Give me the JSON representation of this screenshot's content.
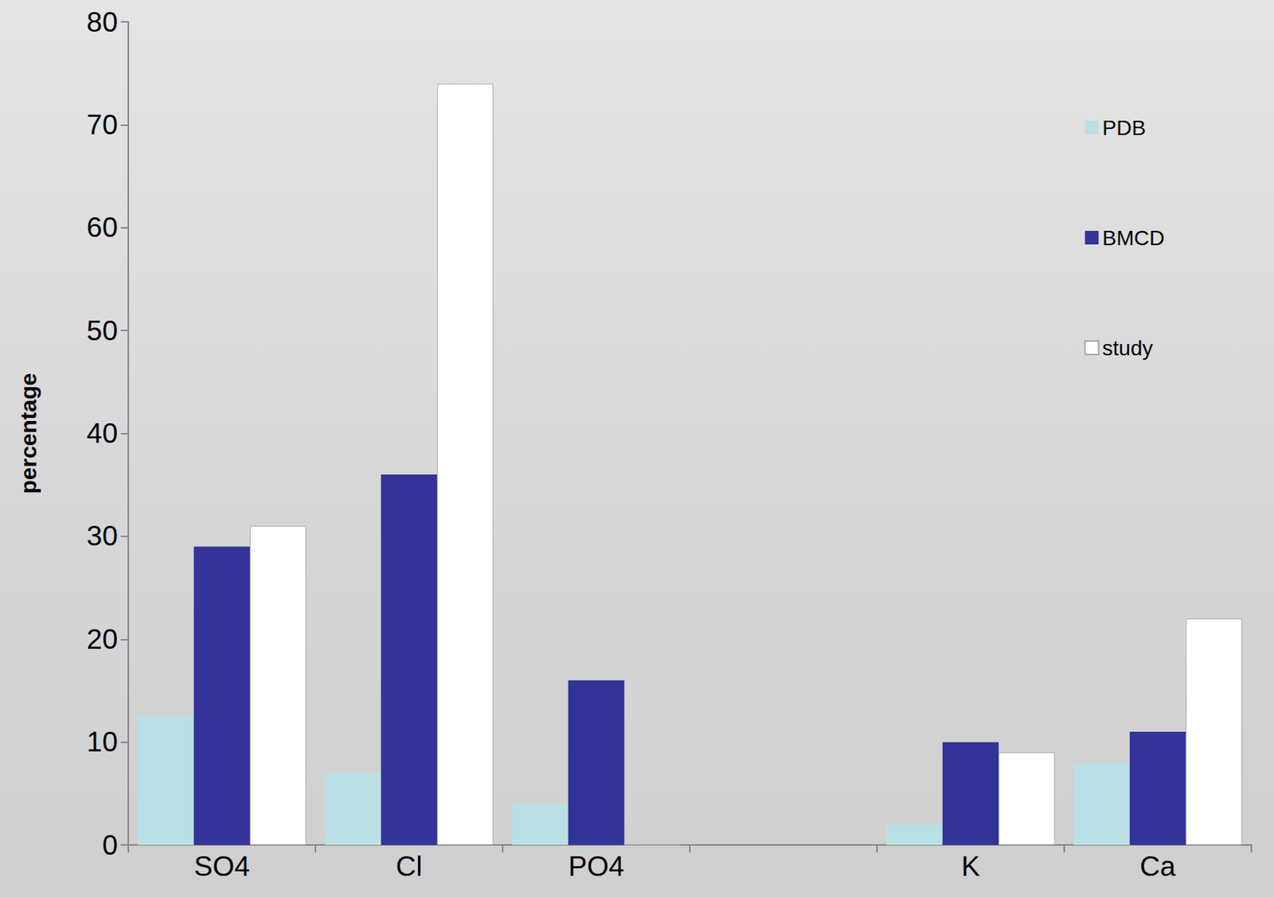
{
  "chart_data": {
    "type": "bar",
    "y_label": "percentage",
    "categories": [
      "SO4",
      "Cl",
      "PO4",
      null,
      "K",
      "Ca"
    ],
    "series": [
      {
        "name": "PDB",
        "color": "#b9e0e4",
        "values": [
          12.5,
          7,
          4,
          null,
          2,
          8
        ]
      },
      {
        "name": "BMCD",
        "color": "#333399",
        "values": [
          29,
          36,
          16,
          null,
          10,
          11
        ]
      },
      {
        "name": "study",
        "color": "#ffffff",
        "values": [
          31,
          74,
          0,
          null,
          9,
          22
        ]
      }
    ],
    "ylim": [
      0,
      80
    ],
    "yticks": [
      0,
      10,
      20,
      30,
      40,
      50,
      60,
      70,
      80
    ],
    "grid": false,
    "legend": "right"
  }
}
